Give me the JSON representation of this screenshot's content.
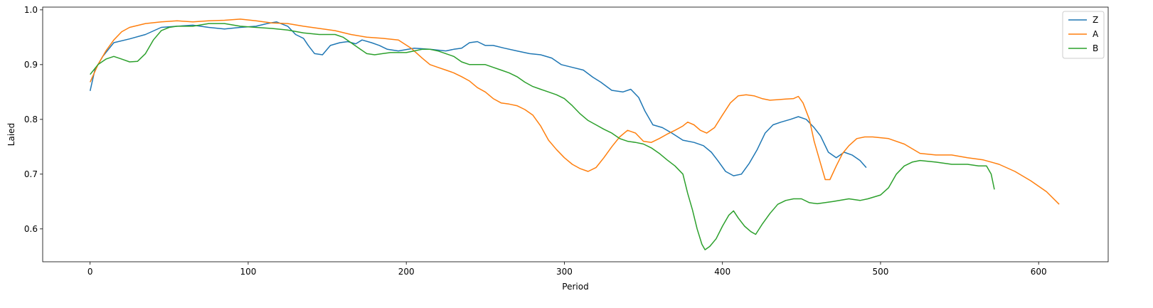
{
  "chart_data": {
    "type": "line",
    "title": "",
    "xlabel": "Period",
    "ylabel": "Laied",
    "xlim": [
      -30,
      644
    ],
    "ylim": [
      0.54,
      1.005
    ],
    "xticks": [
      0,
      100,
      200,
      300,
      400,
      500,
      600
    ],
    "yticks": [
      0.6,
      0.7,
      0.8,
      0.9,
      1.0
    ],
    "ytick_labels": [
      "0.6",
      "0.7",
      "0.8",
      "0.9",
      "1.0"
    ],
    "grid": false,
    "legend_position": "top-right",
    "series": [
      {
        "name": "Z",
        "color": "#1f77b4",
        "points": [
          [
            0,
            0.852
          ],
          [
            3,
            0.89
          ],
          [
            8,
            0.915
          ],
          [
            15,
            0.94
          ],
          [
            25,
            0.947
          ],
          [
            35,
            0.955
          ],
          [
            45,
            0.968
          ],
          [
            55,
            0.97
          ],
          [
            65,
            0.972
          ],
          [
            75,
            0.968
          ],
          [
            85,
            0.965
          ],
          [
            95,
            0.968
          ],
          [
            105,
            0.97
          ],
          [
            112,
            0.975
          ],
          [
            118,
            0.978
          ],
          [
            125,
            0.97
          ],
          [
            130,
            0.955
          ],
          [
            135,
            0.948
          ],
          [
            138,
            0.935
          ],
          [
            142,
            0.92
          ],
          [
            147,
            0.918
          ],
          [
            152,
            0.935
          ],
          [
            158,
            0.94
          ],
          [
            163,
            0.942
          ],
          [
            168,
            0.938
          ],
          [
            172,
            0.945
          ],
          [
            178,
            0.94
          ],
          [
            183,
            0.935
          ],
          [
            188,
            0.928
          ],
          [
            195,
            0.925
          ],
          [
            205,
            0.93
          ],
          [
            215,
            0.928
          ],
          [
            225,
            0.925
          ],
          [
            230,
            0.928
          ],
          [
            235,
            0.93
          ],
          [
            240,
            0.94
          ],
          [
            245,
            0.942
          ],
          [
            250,
            0.935
          ],
          [
            255,
            0.935
          ],
          [
            262,
            0.93
          ],
          [
            270,
            0.925
          ],
          [
            278,
            0.92
          ],
          [
            285,
            0.918
          ],
          [
            292,
            0.912
          ],
          [
            298,
            0.9
          ],
          [
            305,
            0.895
          ],
          [
            312,
            0.89
          ],
          [
            318,
            0.877
          ],
          [
            323,
            0.868
          ],
          [
            330,
            0.853
          ],
          [
            337,
            0.85
          ],
          [
            342,
            0.855
          ],
          [
            347,
            0.84
          ],
          [
            351,
            0.815
          ],
          [
            356,
            0.79
          ],
          [
            362,
            0.785
          ],
          [
            368,
            0.775
          ],
          [
            375,
            0.762
          ],
          [
            382,
            0.758
          ],
          [
            388,
            0.752
          ],
          [
            393,
            0.74
          ],
          [
            397,
            0.725
          ],
          [
            402,
            0.705
          ],
          [
            407,
            0.697
          ],
          [
            412,
            0.7
          ],
          [
            417,
            0.72
          ],
          [
            422,
            0.745
          ],
          [
            427,
            0.775
          ],
          [
            432,
            0.79
          ],
          [
            437,
            0.795
          ],
          [
            443,
            0.8
          ],
          [
            448,
            0.805
          ],
          [
            453,
            0.8
          ],
          [
            458,
            0.785
          ],
          [
            462,
            0.77
          ],
          [
            467,
            0.74
          ],
          [
            472,
            0.73
          ],
          [
            477,
            0.74
          ],
          [
            482,
            0.735
          ],
          [
            487,
            0.725
          ],
          [
            491,
            0.712
          ]
        ]
      },
      {
        "name": "A",
        "color": "#ff7f0e",
        "points": [
          [
            0,
            0.868
          ],
          [
            5,
            0.9
          ],
          [
            10,
            0.925
          ],
          [
            15,
            0.945
          ],
          [
            20,
            0.96
          ],
          [
            25,
            0.968
          ],
          [
            35,
            0.975
          ],
          [
            45,
            0.978
          ],
          [
            55,
            0.98
          ],
          [
            65,
            0.978
          ],
          [
            75,
            0.98
          ],
          [
            85,
            0.981
          ],
          [
            95,
            0.983
          ],
          [
            105,
            0.98
          ],
          [
            115,
            0.976
          ],
          [
            125,
            0.975
          ],
          [
            135,
            0.97
          ],
          [
            145,
            0.966
          ],
          [
            155,
            0.962
          ],
          [
            165,
            0.955
          ],
          [
            175,
            0.95
          ],
          [
            185,
            0.948
          ],
          [
            195,
            0.945
          ],
          [
            203,
            0.93
          ],
          [
            210,
            0.912
          ],
          [
            215,
            0.9
          ],
          [
            220,
            0.895
          ],
          [
            225,
            0.89
          ],
          [
            230,
            0.885
          ],
          [
            235,
            0.878
          ],
          [
            240,
            0.87
          ],
          [
            245,
            0.858
          ],
          [
            250,
            0.85
          ],
          [
            255,
            0.838
          ],
          [
            260,
            0.83
          ],
          [
            265,
            0.828
          ],
          [
            270,
            0.825
          ],
          [
            275,
            0.818
          ],
          [
            280,
            0.808
          ],
          [
            285,
            0.788
          ],
          [
            290,
            0.762
          ],
          [
            295,
            0.745
          ],
          [
            300,
            0.73
          ],
          [
            305,
            0.718
          ],
          [
            310,
            0.71
          ],
          [
            315,
            0.705
          ],
          [
            320,
            0.712
          ],
          [
            325,
            0.73
          ],
          [
            330,
            0.75
          ],
          [
            335,
            0.768
          ],
          [
            340,
            0.78
          ],
          [
            345,
            0.775
          ],
          [
            350,
            0.76
          ],
          [
            355,
            0.758
          ],
          [
            360,
            0.765
          ],
          [
            365,
            0.773
          ],
          [
            370,
            0.78
          ],
          [
            375,
            0.788
          ],
          [
            378,
            0.795
          ],
          [
            382,
            0.79
          ],
          [
            386,
            0.78
          ],
          [
            390,
            0.775
          ],
          [
            395,
            0.785
          ],
          [
            400,
            0.808
          ],
          [
            405,
            0.83
          ],
          [
            410,
            0.843
          ],
          [
            415,
            0.845
          ],
          [
            420,
            0.843
          ],
          [
            425,
            0.838
          ],
          [
            430,
            0.835
          ],
          [
            435,
            0.836
          ],
          [
            440,
            0.837
          ],
          [
            445,
            0.838
          ],
          [
            448,
            0.842
          ],
          [
            451,
            0.83
          ],
          [
            455,
            0.8
          ],
          [
            458,
            0.76
          ],
          [
            462,
            0.72
          ],
          [
            465,
            0.69
          ],
          [
            468,
            0.69
          ],
          [
            472,
            0.715
          ],
          [
            476,
            0.738
          ],
          [
            480,
            0.752
          ],
          [
            485,
            0.765
          ],
          [
            490,
            0.768
          ],
          [
            495,
            0.768
          ],
          [
            505,
            0.765
          ],
          [
            515,
            0.755
          ],
          [
            525,
            0.738
          ],
          [
            535,
            0.735
          ],
          [
            545,
            0.735
          ],
          [
            555,
            0.73
          ],
          [
            565,
            0.726
          ],
          [
            575,
            0.718
          ],
          [
            585,
            0.705
          ],
          [
            595,
            0.688
          ],
          [
            605,
            0.668
          ],
          [
            613,
            0.645
          ]
        ]
      },
      {
        "name": "B",
        "color": "#2ca02c",
        "points": [
          [
            0,
            0.882
          ],
          [
            5,
            0.9
          ],
          [
            10,
            0.91
          ],
          [
            15,
            0.915
          ],
          [
            20,
            0.91
          ],
          [
            25,
            0.905
          ],
          [
            30,
            0.906
          ],
          [
            35,
            0.92
          ],
          [
            40,
            0.945
          ],
          [
            45,
            0.962
          ],
          [
            50,
            0.968
          ],
          [
            55,
            0.97
          ],
          [
            65,
            0.97
          ],
          [
            75,
            0.975
          ],
          [
            85,
            0.975
          ],
          [
            95,
            0.97
          ],
          [
            105,
            0.968
          ],
          [
            115,
            0.966
          ],
          [
            125,
            0.963
          ],
          [
            135,
            0.958
          ],
          [
            145,
            0.955
          ],
          [
            155,
            0.955
          ],
          [
            160,
            0.95
          ],
          [
            165,
            0.94
          ],
          [
            170,
            0.93
          ],
          [
            175,
            0.92
          ],
          [
            180,
            0.918
          ],
          [
            185,
            0.92
          ],
          [
            190,
            0.922
          ],
          [
            195,
            0.922
          ],
          [
            200,
            0.922
          ],
          [
            205,
            0.925
          ],
          [
            210,
            0.928
          ],
          [
            215,
            0.928
          ],
          [
            220,
            0.925
          ],
          [
            225,
            0.92
          ],
          [
            230,
            0.915
          ],
          [
            235,
            0.905
          ],
          [
            240,
            0.9
          ],
          [
            245,
            0.9
          ],
          [
            250,
            0.9
          ],
          [
            255,
            0.895
          ],
          [
            260,
            0.89
          ],
          [
            265,
            0.885
          ],
          [
            270,
            0.878
          ],
          [
            275,
            0.868
          ],
          [
            280,
            0.86
          ],
          [
            285,
            0.855
          ],
          [
            290,
            0.85
          ],
          [
            295,
            0.845
          ],
          [
            300,
            0.838
          ],
          [
            305,
            0.825
          ],
          [
            310,
            0.81
          ],
          [
            315,
            0.798
          ],
          [
            320,
            0.79
          ],
          [
            325,
            0.782
          ],
          [
            330,
            0.775
          ],
          [
            335,
            0.765
          ],
          [
            340,
            0.76
          ],
          [
            345,
            0.758
          ],
          [
            350,
            0.755
          ],
          [
            355,
            0.748
          ],
          [
            360,
            0.738
          ],
          [
            365,
            0.726
          ],
          [
            370,
            0.715
          ],
          [
            375,
            0.7
          ],
          [
            378,
            0.665
          ],
          [
            381,
            0.635
          ],
          [
            384,
            0.6
          ],
          [
            387,
            0.572
          ],
          [
            389,
            0.562
          ],
          [
            392,
            0.568
          ],
          [
            396,
            0.582
          ],
          [
            400,
            0.605
          ],
          [
            404,
            0.625
          ],
          [
            407,
            0.633
          ],
          [
            410,
            0.62
          ],
          [
            414,
            0.605
          ],
          [
            418,
            0.595
          ],
          [
            421,
            0.59
          ],
          [
            425,
            0.608
          ],
          [
            430,
            0.628
          ],
          [
            435,
            0.645
          ],
          [
            440,
            0.652
          ],
          [
            445,
            0.655
          ],
          [
            450,
            0.655
          ],
          [
            455,
            0.648
          ],
          [
            460,
            0.646
          ],
          [
            470,
            0.65
          ],
          [
            480,
            0.655
          ],
          [
            487,
            0.652
          ],
          [
            492,
            0.655
          ],
          [
            500,
            0.662
          ],
          [
            505,
            0.675
          ],
          [
            510,
            0.7
          ],
          [
            515,
            0.715
          ],
          [
            520,
            0.722
          ],
          [
            525,
            0.725
          ],
          [
            535,
            0.722
          ],
          [
            545,
            0.718
          ],
          [
            555,
            0.718
          ],
          [
            562,
            0.715
          ],
          [
            567,
            0.715
          ],
          [
            570,
            0.7
          ],
          [
            572,
            0.672
          ]
        ]
      }
    ]
  }
}
